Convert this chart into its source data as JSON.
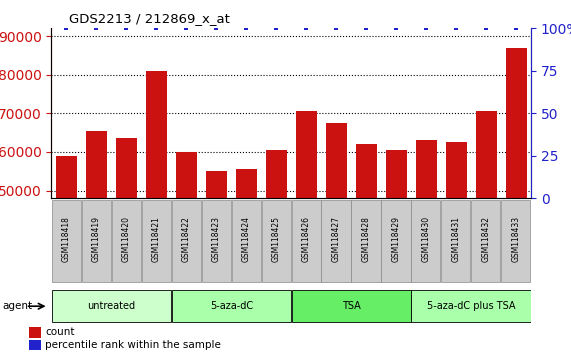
{
  "title": "GDS2213 / 212869_x_at",
  "samples": [
    "GSM118418",
    "GSM118419",
    "GSM118420",
    "GSM118421",
    "GSM118422",
    "GSM118423",
    "GSM118424",
    "GSM118425",
    "GSM118426",
    "GSM118427",
    "GSM118428",
    "GSM118429",
    "GSM118430",
    "GSM118431",
    "GSM118432",
    "GSM118433"
  ],
  "counts": [
    59000,
    65500,
    63500,
    81000,
    60000,
    55000,
    55500,
    60500,
    70500,
    67500,
    62000,
    60500,
    63000,
    62500,
    70500,
    87000
  ],
  "percentiles": [
    100,
    100,
    100,
    100,
    100,
    100,
    100,
    100,
    100,
    100,
    100,
    100,
    100,
    100,
    100,
    100
  ],
  "ylim_left": [
    48000,
    92000
  ],
  "ylim_right": [
    0,
    100
  ],
  "yticks_left": [
    50000,
    60000,
    70000,
    80000,
    90000
  ],
  "yticks_right": [
    0,
    25,
    50,
    75,
    100
  ],
  "bar_color": "#cc1111",
  "scatter_color": "#2222cc",
  "groups": [
    {
      "label": "untreated",
      "start": 0,
      "end": 4,
      "color": "#ccffcc"
    },
    {
      "label": "5-aza-dC",
      "start": 4,
      "end": 8,
      "color": "#aaffaa"
    },
    {
      "label": "TSA",
      "start": 8,
      "end": 12,
      "color": "#66ee66"
    },
    {
      "label": "5-aza-dC plus TSA",
      "start": 12,
      "end": 16,
      "color": "#aaffaa"
    }
  ],
  "agent_label": "agent",
  "legend_count_label": "count",
  "legend_pct_label": "percentile rank within the sample",
  "background_color": "#ffffff",
  "tick_color_left": "#cc1111",
  "tick_color_right": "#2222cc",
  "sample_box_color": "#cccccc",
  "sample_box_edge": "#888888"
}
